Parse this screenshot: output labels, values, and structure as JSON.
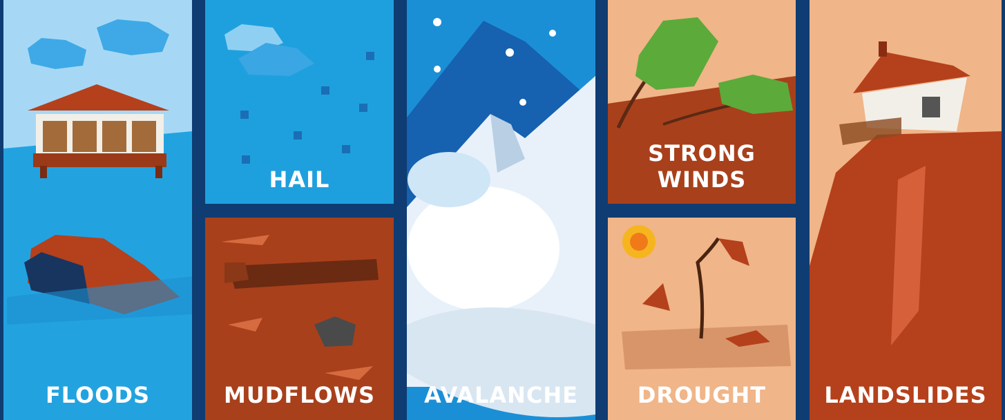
{
  "panels": [
    {
      "label": "FLOODS"
    },
    {
      "label": "HAIL"
    },
    {
      "label": "MUDFLOWS"
    },
    {
      "label": "AVALANCHE"
    },
    {
      "label": "STRONG WINDS"
    },
    {
      "label": "DROUGHT"
    },
    {
      "label": "LANDSLIDES"
    }
  ]
}
